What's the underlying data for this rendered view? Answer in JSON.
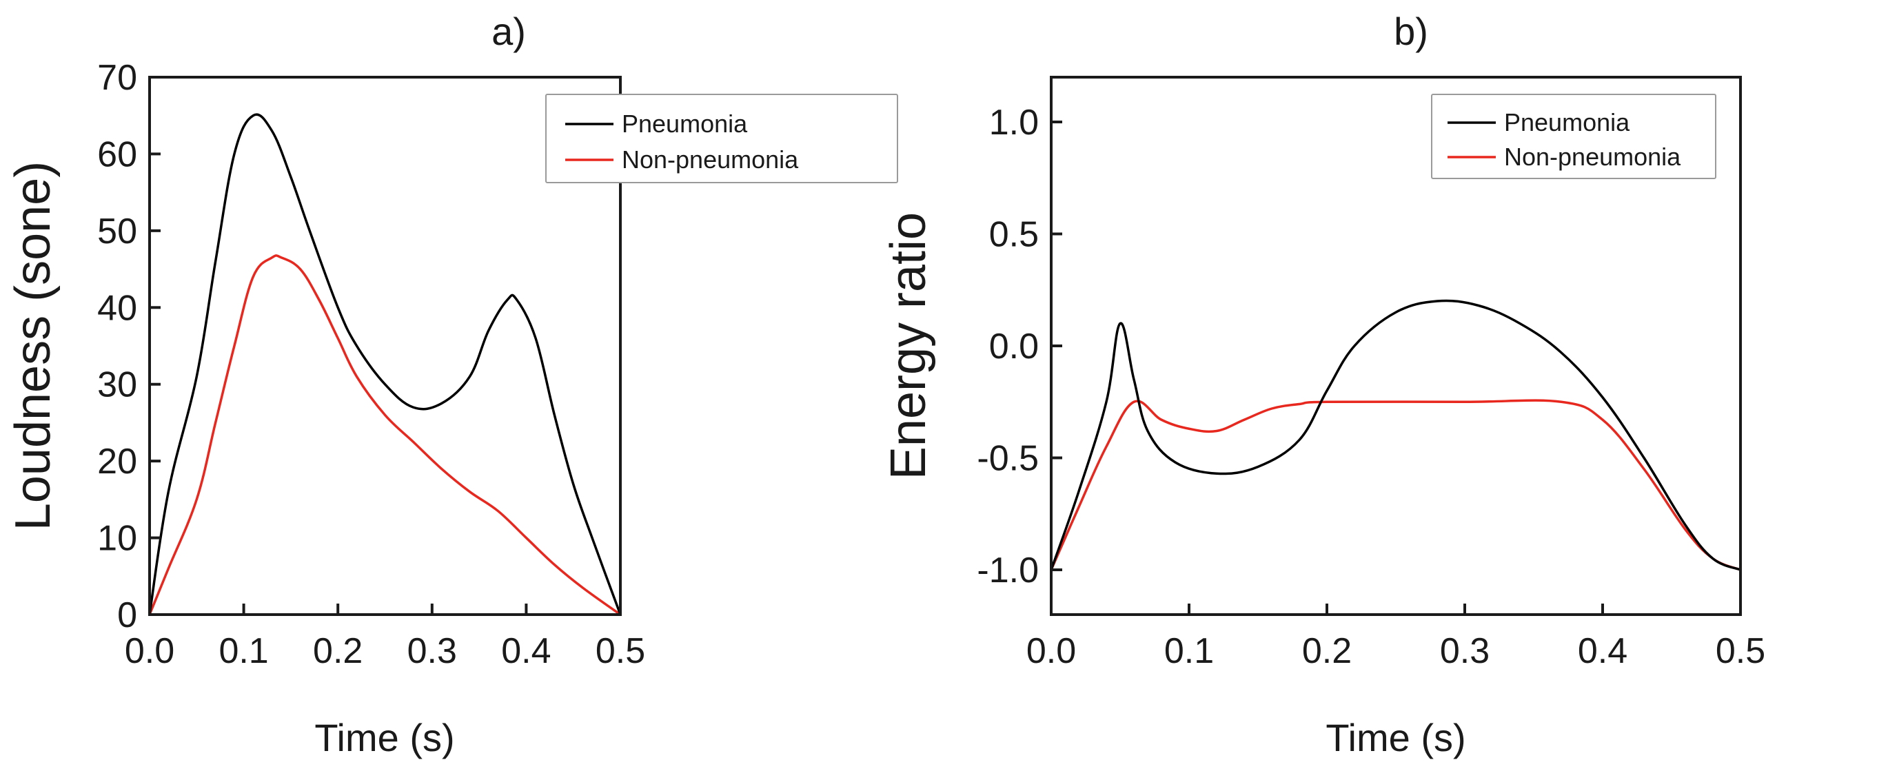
{
  "chart_data": [
    {
      "type": "line",
      "title": "a)",
      "xlabel": "Time (s)",
      "ylabel": "Loudness (sone)",
      "xlim": [
        0,
        0.5
      ],
      "ylim": [
        0,
        70
      ],
      "xticks": [
        0.0,
        0.1,
        0.2,
        0.3,
        0.4,
        0.5
      ],
      "yticks": [
        0,
        10,
        20,
        30,
        40,
        50,
        60,
        70
      ],
      "xtick_labels": [
        "0.0",
        "0.1",
        "0.2",
        "0.3",
        "0.4",
        "0.5"
      ],
      "ytick_labels": [
        "0",
        "10",
        "20",
        "30",
        "40",
        "50",
        "60",
        "70"
      ],
      "legend_position": "top-right",
      "series": [
        {
          "name": "Pneumonia",
          "color": "#000000",
          "x": [
            0.0,
            0.02,
            0.05,
            0.07,
            0.09,
            0.11,
            0.13,
            0.15,
            0.17,
            0.2,
            0.22,
            0.25,
            0.28,
            0.31,
            0.34,
            0.36,
            0.38,
            0.39,
            0.41,
            0.43,
            0.45,
            0.47,
            0.5
          ],
          "y": [
            0,
            16,
            31,
            46,
            60,
            65,
            63,
            57,
            50,
            40,
            35,
            30,
            27,
            27.5,
            31,
            37,
            41,
            41,
            36,
            26,
            17,
            10,
            0
          ]
        },
        {
          "name": "Non-pneumonia",
          "color": "#e8281e",
          "x": [
            0.0,
            0.02,
            0.05,
            0.07,
            0.09,
            0.11,
            0.13,
            0.14,
            0.16,
            0.18,
            0.2,
            0.22,
            0.25,
            0.28,
            0.31,
            0.34,
            0.37,
            0.4,
            0.43,
            0.46,
            0.5
          ],
          "y": [
            0,
            6,
            15,
            25,
            35,
            44,
            46.5,
            46.5,
            45,
            41,
            36,
            31,
            26,
            22.5,
            19,
            16,
            13.5,
            10,
            6.5,
            3.5,
            0
          ]
        }
      ]
    },
    {
      "type": "line",
      "title": "b)",
      "xlabel": "Time (s)",
      "ylabel": "Energy ratio",
      "xlim": [
        0,
        0.5
      ],
      "ylim": [
        -1.2,
        1.2
      ],
      "xticks": [
        0.0,
        0.1,
        0.2,
        0.3,
        0.4,
        0.5
      ],
      "yticks": [
        -1.0,
        -0.5,
        0.0,
        0.5,
        1.0
      ],
      "xtick_labels": [
        "0.0",
        "0.1",
        "0.2",
        "0.3",
        "0.4",
        "0.5"
      ],
      "ytick_labels": [
        "-1.0",
        "-0.5",
        "0.0",
        "0.5",
        "1.0"
      ],
      "legend_position": "top-right",
      "series": [
        {
          "name": "Pneumonia",
          "color": "#000000",
          "x": [
            0.0,
            0.02,
            0.04,
            0.05,
            0.06,
            0.07,
            0.09,
            0.12,
            0.15,
            0.18,
            0.2,
            0.22,
            0.25,
            0.28,
            0.31,
            0.34,
            0.37,
            0.4,
            0.43,
            0.46,
            0.48,
            0.5
          ],
          "y": [
            -1.0,
            -0.65,
            -0.25,
            0.1,
            -0.15,
            -0.38,
            -0.52,
            -0.57,
            -0.54,
            -0.42,
            -0.2,
            0.0,
            0.15,
            0.2,
            0.18,
            0.1,
            -0.03,
            -0.23,
            -0.5,
            -0.8,
            -0.95,
            -1.0
          ],
          "peak_label_shown": false
        },
        {
          "name": "Non-pneumonia",
          "color": "#e8281e",
          "x": [
            0.0,
            0.02,
            0.04,
            0.06,
            0.08,
            0.1,
            0.12,
            0.14,
            0.16,
            0.18,
            0.2,
            0.3,
            0.37,
            0.4,
            0.43,
            0.46,
            0.48,
            0.5
          ],
          "y": [
            -1.0,
            -0.72,
            -0.45,
            -0.25,
            -0.33,
            -0.37,
            -0.38,
            -0.33,
            -0.28,
            -0.26,
            -0.25,
            -0.25,
            -0.25,
            -0.33,
            -0.55,
            -0.82,
            -0.95,
            -1.0
          ]
        }
      ]
    }
  ]
}
